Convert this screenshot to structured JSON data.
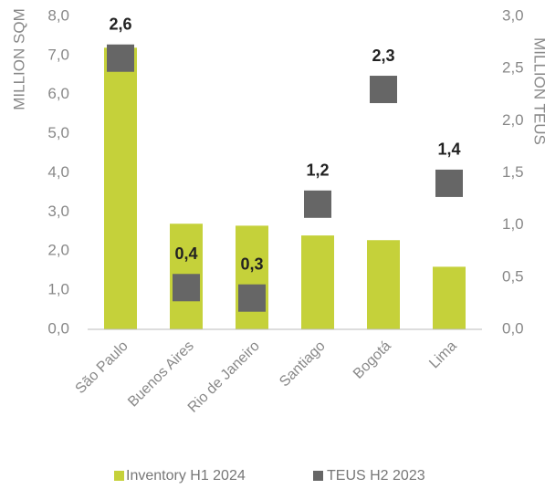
{
  "chart_data": {
    "type": "bar_square",
    "y_axis_label": "MILLION SQM",
    "y2_axis_label": "MILLION TEUS",
    "categories": [
      "São Paulo",
      "Buenos Aires",
      "Rio de Janeiro",
      "Santiago",
      "Bogotá",
      "Lima"
    ],
    "series": [
      {
        "name": "Inventory H1 2024",
        "color": "#c5d13a",
        "values": [
          7.2,
          2.7,
          2.65,
          2.4,
          2.28,
          1.6
        ]
      },
      {
        "name": "TEUS H2 2023",
        "color": "#666666",
        "axis": "y2",
        "values": [
          2.6,
          0.4,
          0.3,
          1.2,
          2.3,
          1.4
        ],
        "value_labels": [
          "2,6",
          "0,4",
          "0,3",
          "1,2",
          "2,3",
          "1,4"
        ]
      }
    ],
    "ylim": [
      0,
      8
    ],
    "yticks": [
      {
        "value": 0,
        "label": "0,0"
      },
      {
        "value": 1,
        "label": "1,0"
      },
      {
        "value": 2,
        "label": "2,0"
      },
      {
        "value": 3,
        "label": "3,0"
      },
      {
        "value": 4,
        "label": "4,0"
      },
      {
        "value": 5,
        "label": "5,0"
      },
      {
        "value": 6,
        "label": "6,0"
      },
      {
        "value": 7,
        "label": "7,0"
      },
      {
        "value": 8,
        "label": "8,0"
      }
    ],
    "y2lim": [
      0,
      3
    ],
    "y2ticks": [
      {
        "value": 0,
        "label": "0,0"
      },
      {
        "value": 0.5,
        "label": "0,5"
      },
      {
        "value": 1,
        "label": "1,0"
      },
      {
        "value": 1.5,
        "label": "1,5"
      },
      {
        "value": 2,
        "label": "2,0"
      },
      {
        "value": 2.5,
        "label": "2,5"
      },
      {
        "value": 3,
        "label": "3,0"
      }
    ],
    "legend": "bottom"
  }
}
